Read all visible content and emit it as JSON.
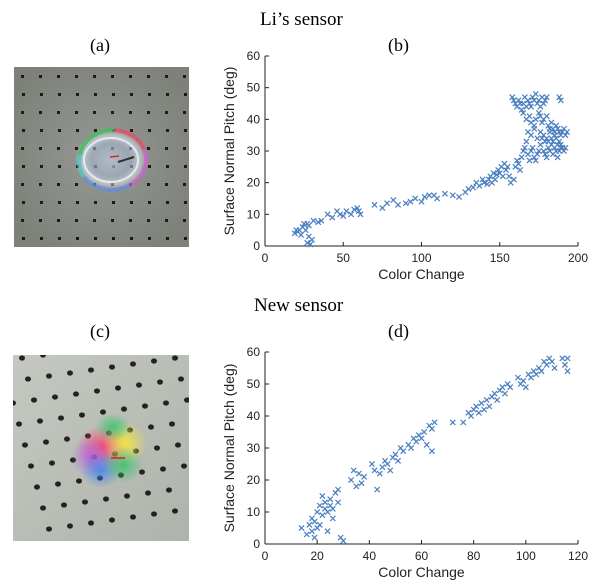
{
  "top_heading": "Li’s sensor",
  "bottom_heading": "New sensor",
  "panels": {
    "a": "(a)",
    "b": "(b)",
    "c": "(c)",
    "d": "(d)"
  },
  "colors": {
    "marker": "#4a7fc1",
    "axis": "#222222",
    "photo_a_bg": "#8a8c86",
    "photo_c_bg": "#b9bdb6"
  },
  "chart_data": [
    {
      "type": "scatter",
      "panel": "(b)",
      "marker": "x",
      "xlabel": "Color Change",
      "ylabel": "Surface Normal Pitch (deg)",
      "xlim": [
        0,
        200
      ],
      "ylim": [
        0,
        60
      ],
      "xticks": [
        0,
        50,
        100,
        150,
        200
      ],
      "yticks": [
        0,
        10,
        20,
        30,
        40,
        50,
        60
      ],
      "grid": false,
      "points": [
        [
          19,
          4
        ],
        [
          20,
          5
        ],
        [
          21,
          4.5
        ],
        [
          22,
          5
        ],
        [
          23,
          3.5
        ],
        [
          24,
          6
        ],
        [
          25,
          7
        ],
        [
          26,
          5
        ],
        [
          27,
          7
        ],
        [
          27,
          1
        ],
        [
          28,
          3
        ],
        [
          29,
          0.5
        ],
        [
          30,
          2
        ],
        [
          28,
          6.5
        ],
        [
          31,
          8
        ],
        [
          34,
          7.5
        ],
        [
          36,
          8
        ],
        [
          40,
          10
        ],
        [
          43,
          9
        ],
        [
          46,
          11
        ],
        [
          48,
          10
        ],
        [
          50,
          9.5
        ],
        [
          52,
          11
        ],
        [
          55,
          10
        ],
        [
          57,
          11.5
        ],
        [
          59,
          12
        ],
        [
          60,
          11
        ],
        [
          61,
          10
        ],
        [
          70,
          13
        ],
        [
          75,
          12
        ],
        [
          78,
          13.5
        ],
        [
          82,
          14.5
        ],
        [
          85,
          13
        ],
        [
          90,
          13.5
        ],
        [
          93,
          14
        ],
        [
          96,
          15
        ],
        [
          100,
          14
        ],
        [
          102,
          15.5
        ],
        [
          105,
          16
        ],
        [
          108,
          16
        ],
        [
          110,
          15
        ],
        [
          115,
          16.5
        ],
        [
          120,
          16
        ],
        [
          124,
          15.5
        ],
        [
          128,
          17
        ],
        [
          130,
          18
        ],
        [
          133,
          18.5
        ],
        [
          135,
          20
        ],
        [
          137,
          19
        ],
        [
          139,
          21
        ],
        [
          140,
          20
        ],
        [
          142,
          19.5
        ],
        [
          143,
          21
        ],
        [
          144,
          22
        ],
        [
          145,
          20
        ],
        [
          146,
          23
        ],
        [
          147,
          21
        ],
        [
          148,
          22.5
        ],
        [
          149,
          24
        ],
        [
          150,
          23
        ],
        [
          151,
          25
        ],
        [
          152,
          22
        ],
        [
          153,
          26
        ],
        [
          154,
          24
        ],
        [
          155,
          25
        ],
        [
          156,
          22
        ],
        [
          157,
          20
        ],
        [
          159,
          21
        ],
        [
          160,
          25
        ],
        [
          161,
          27
        ],
        [
          162,
          26
        ],
        [
          163,
          24
        ],
        [
          164,
          28
        ],
        [
          165,
          30
        ],
        [
          166,
          31
        ],
        [
          167,
          33
        ],
        [
          168,
          29
        ],
        [
          169,
          27
        ],
        [
          170,
          30
        ],
        [
          171,
          31
        ],
        [
          172,
          28
        ],
        [
          173,
          27
        ],
        [
          174,
          29
        ],
        [
          175,
          30
        ],
        [
          176,
          32
        ],
        [
          177,
          34
        ],
        [
          178,
          30
        ],
        [
          179,
          29
        ],
        [
          180,
          28
        ],
        [
          181,
          31
        ],
        [
          182,
          30
        ],
        [
          183,
          32
        ],
        [
          184,
          29
        ],
        [
          185,
          31
        ],
        [
          186,
          30
        ],
        [
          187,
          28
        ],
        [
          188,
          30
        ],
        [
          189,
          31
        ],
        [
          158,
          47
        ],
        [
          159,
          46
        ],
        [
          160,
          45
        ],
        [
          161,
          44
        ],
        [
          162,
          46
        ],
        [
          163,
          45
        ],
        [
          164,
          43
        ],
        [
          165,
          45
        ],
        [
          166,
          47
        ],
        [
          167,
          44
        ],
        [
          168,
          46
        ],
        [
          169,
          45
        ],
        [
          170,
          44
        ],
        [
          171,
          47
        ],
        [
          172,
          46
        ],
        [
          173,
          48
        ],
        [
          174,
          45
        ],
        [
          175,
          46
        ],
        [
          176,
          44
        ],
        [
          177,
          47
        ],
        [
          178,
          45
        ],
        [
          179,
          46
        ],
        [
          180,
          47
        ],
        [
          188,
          47
        ],
        [
          189,
          46
        ],
        [
          165,
          42
        ],
        [
          167,
          40
        ],
        [
          169,
          41
        ],
        [
          170,
          39
        ],
        [
          172,
          38
        ],
        [
          173,
          40
        ],
        [
          175,
          42
        ],
        [
          176,
          41
        ],
        [
          177,
          39
        ],
        [
          178,
          40
        ],
        [
          180,
          41
        ],
        [
          181,
          38
        ],
        [
          182,
          37
        ],
        [
          183,
          39
        ],
        [
          184,
          37
        ],
        [
          185,
          36
        ],
        [
          186,
          38
        ],
        [
          187,
          37
        ],
        [
          188,
          36
        ],
        [
          189,
          35
        ],
        [
          190,
          36
        ],
        [
          191,
          37
        ],
        [
          192,
          35
        ],
        [
          193,
          36
        ],
        [
          168,
          36
        ],
        [
          170,
          35
        ],
        [
          172,
          37
        ],
        [
          174,
          34
        ],
        [
          176,
          36
        ],
        [
          178,
          35
        ],
        [
          179,
          33
        ],
        [
          180,
          34
        ],
        [
          181,
          33
        ],
        [
          182,
          36
        ],
        [
          183,
          34
        ],
        [
          184,
          33
        ],
        [
          185,
          35
        ],
        [
          186,
          34
        ],
        [
          187,
          32
        ],
        [
          188,
          33
        ],
        [
          189,
          32
        ],
        [
          190,
          31
        ],
        [
          191,
          30
        ],
        [
          192,
          31
        ]
      ]
    },
    {
      "type": "scatter",
      "panel": "(d)",
      "marker": "x",
      "xlabel": "Color Change",
      "ylabel": "Surface Normal Pitch (deg)",
      "xlim": [
        0,
        120
      ],
      "ylim": [
        0,
        60
      ],
      "xticks": [
        0,
        20,
        40,
        60,
        80,
        100,
        120
      ],
      "yticks": [
        0,
        10,
        20,
        30,
        40,
        50,
        60
      ],
      "grid": false,
      "points": [
        [
          14,
          5
        ],
        [
          16,
          3
        ],
        [
          17,
          6
        ],
        [
          18,
          4
        ],
        [
          18,
          8
        ],
        [
          19,
          7
        ],
        [
          19,
          2
        ],
        [
          20,
          10
        ],
        [
          20,
          5
        ],
        [
          21,
          12
        ],
        [
          21,
          6
        ],
        [
          22,
          15
        ],
        [
          22,
          9
        ],
        [
          23,
          11
        ],
        [
          23,
          13
        ],
        [
          24,
          10
        ],
        [
          24,
          4
        ],
        [
          25,
          14
        ],
        [
          25,
          12
        ],
        [
          26,
          11
        ],
        [
          26,
          8
        ],
        [
          27,
          16
        ],
        [
          28,
          17
        ],
        [
          28,
          13
        ],
        [
          29,
          2
        ],
        [
          30,
          1
        ],
        [
          33,
          20
        ],
        [
          34,
          23
        ],
        [
          35,
          18
        ],
        [
          36,
          22
        ],
        [
          37,
          19
        ],
        [
          38,
          21
        ],
        [
          41,
          25
        ],
        [
          42,
          23
        ],
        [
          43,
          17
        ],
        [
          44,
          22
        ],
        [
          45,
          24
        ],
        [
          46,
          26
        ],
        [
          47,
          25
        ],
        [
          48,
          23
        ],
        [
          49,
          27
        ],
        [
          50,
          28
        ],
        [
          51,
          26
        ],
        [
          52,
          30
        ],
        [
          53,
          29
        ],
        [
          55,
          31
        ],
        [
          56,
          30
        ],
        [
          57,
          33
        ],
        [
          58,
          32
        ],
        [
          59,
          34
        ],
        [
          60,
          33
        ],
        [
          61,
          35
        ],
        [
          62,
          31
        ],
        [
          63,
          37
        ],
        [
          64,
          36
        ],
        [
          64,
          29
        ],
        [
          65,
          38
        ],
        [
          72,
          38
        ],
        [
          76,
          38
        ],
        [
          78,
          41
        ],
        [
          79,
          40
        ],
        [
          80,
          42
        ],
        [
          81,
          43
        ],
        [
          82,
          41
        ],
        [
          83,
          44
        ],
        [
          84,
          42
        ],
        [
          85,
          45
        ],
        [
          86,
          43
        ],
        [
          87,
          46
        ],
        [
          88,
          47
        ],
        [
          89,
          45
        ],
        [
          90,
          48
        ],
        [
          91,
          49
        ],
        [
          92,
          47
        ],
        [
          93,
          50
        ],
        [
          94,
          49
        ],
        [
          97,
          52
        ],
        [
          98,
          50
        ],
        [
          99,
          51
        ],
        [
          100,
          49
        ],
        [
          101,
          53
        ],
        [
          102,
          52
        ],
        [
          103,
          54
        ],
        [
          104,
          53
        ],
        [
          105,
          55
        ],
        [
          106,
          54
        ],
        [
          107,
          57
        ],
        [
          108,
          56
        ],
        [
          109,
          58
        ],
        [
          110,
          57
        ],
        [
          111,
          55
        ],
        [
          114,
          58
        ],
        [
          115,
          56
        ],
        [
          116,
          54
        ],
        [
          116,
          58
        ]
      ]
    }
  ]
}
